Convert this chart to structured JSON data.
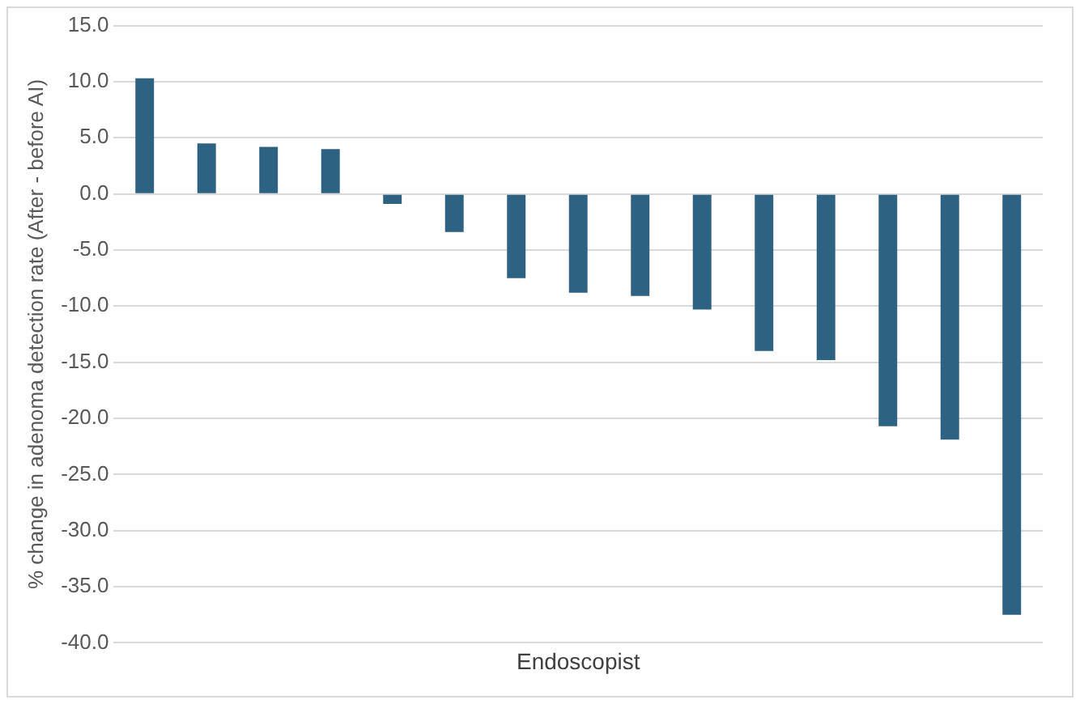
{
  "chart_data": {
    "type": "bar",
    "xlabel": "Endoscopist",
    "ylabel": "% change in adenoma detection rate (After - before AI)",
    "categories": [
      null,
      null,
      null,
      null,
      null,
      null,
      null,
      null,
      null,
      null,
      null,
      null,
      null,
      null,
      null
    ],
    "values": [
      10.3,
      4.5,
      4.2,
      4.0,
      -0.9,
      -3.4,
      -7.5,
      -8.8,
      -9.1,
      -10.3,
      -14.0,
      -14.8,
      -20.7,
      -21.9,
      -37.5
    ],
    "color": "#2e6282",
    "ylim": [
      -40,
      15
    ],
    "yticks": [
      {
        "value": -40,
        "label": "-40.0"
      },
      {
        "value": -35,
        "label": "-35.0"
      },
      {
        "value": -30,
        "label": "-30.0"
      },
      {
        "value": -25,
        "label": "-25.0"
      },
      {
        "value": -20,
        "label": "-20.0"
      },
      {
        "value": -15,
        "label": "-15.0"
      },
      {
        "value": -10,
        "label": "-10.0"
      },
      {
        "value": -5,
        "label": "-5.0"
      },
      {
        "value": 0,
        "label": "0.0"
      },
      {
        "value": 5,
        "label": "5.0"
      },
      {
        "value": 10,
        "label": "10.0"
      },
      {
        "value": 15,
        "label": "15.0"
      }
    ],
    "grid": "y",
    "legend": false,
    "tick_labels": "y"
  }
}
